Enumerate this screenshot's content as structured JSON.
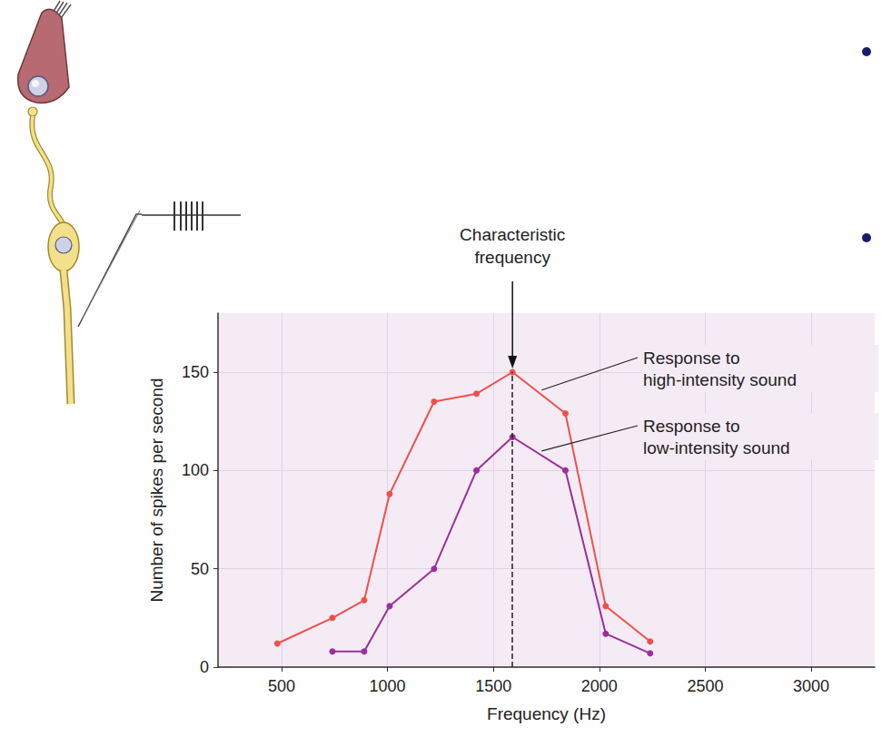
{
  "chart_data": {
    "type": "line",
    "x_label": "Frequency (Hz)",
    "y_label": "Number of spikes per second",
    "xlim": [
      200,
      3300
    ],
    "xticks": [
      500,
      1000,
      1500,
      2000,
      2500,
      3000
    ],
    "ylim": [
      0,
      180
    ],
    "yticks": [
      0,
      50,
      100,
      150
    ],
    "grid": true,
    "marker": "circle",
    "series": [
      {
        "name": "Response to high-intensity sound",
        "color": "#f0504a",
        "x": [
          480,
          740,
          890,
          1010,
          1220,
          1420,
          1590,
          1840,
          2030,
          2240
        ],
        "values": [
          12,
          25,
          34,
          88,
          135,
          139,
          150,
          129,
          31,
          13
        ]
      },
      {
        "name": "Response to low-intensity sound",
        "color": "#9b2f9b",
        "x": [
          740,
          890,
          1010,
          1220,
          1420,
          1590,
          1840,
          2030,
          2240
        ],
        "values": [
          8,
          8,
          31,
          50,
          100,
          117,
          100,
          17,
          7
        ]
      }
    ],
    "annotations": [
      {
        "text": "Characteristic frequency",
        "x": 1590,
        "line_style": "dashed"
      }
    ]
  }
}
